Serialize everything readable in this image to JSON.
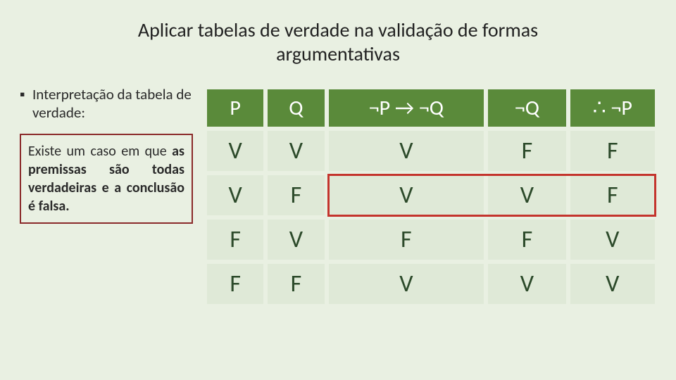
{
  "title_line1": "Aplicar tabelas de verdade na validação de formas",
  "title_line2": "argumentativas",
  "left": {
    "bullet_char": "▪",
    "interp_label": "Interpretação da tabela de verdade:",
    "callout_prefix": "Existe um caso em que ",
    "callout_bold": "as premissas são todas verdadeiras e a conclusão é falsa.",
    "callout_suffix": ""
  },
  "table": {
    "headers": [
      "P",
      "Q",
      "¬P → ¬Q",
      "¬Q",
      "∴ ¬P"
    ],
    "rows": [
      [
        "V",
        "V",
        "V",
        "F",
        "F"
      ],
      [
        "V",
        "F",
        "V",
        "V",
        "F"
      ],
      [
        "F",
        "V",
        "F",
        "F",
        "V"
      ],
      [
        "F",
        "F",
        "V",
        "V",
        "V"
      ]
    ],
    "highlight_row_index": 1,
    "header_bg": "#5a8a3a",
    "header_fg": "#ffffff",
    "cell_bg": "#dfe9d7",
    "cell_fg": "#2c4a2a",
    "highlight_color": "#c4342d"
  },
  "colors": {
    "page_bg": "#e9f0e2",
    "callout_border": "#8a2a2a"
  }
}
